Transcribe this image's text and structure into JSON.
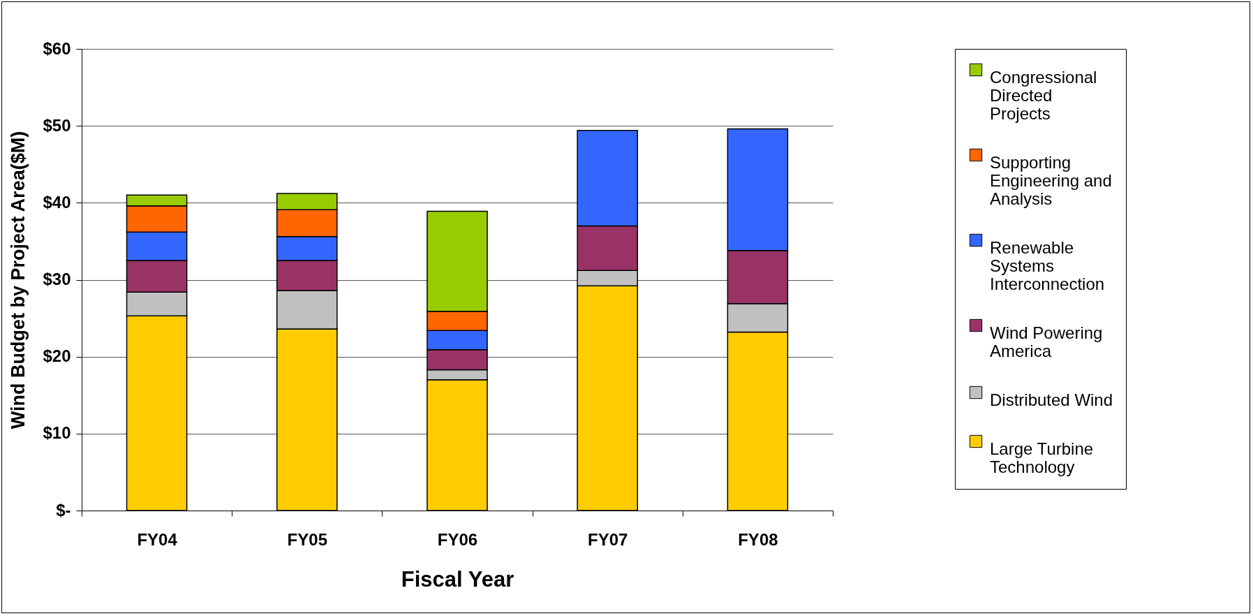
{
  "chart_data": {
    "type": "bar",
    "stacked": true,
    "xlabel": "Fiscal Year",
    "ylabel": "Wind Budget by Project Area($M)",
    "categories": [
      "FY04",
      "FY05",
      "FY06",
      "FY07",
      "FY08"
    ],
    "series": [
      {
        "name": "Large Turbine Technology",
        "color": "#ffcc00",
        "values": [
          25.3,
          23.6,
          17.0,
          29.2,
          23.2
        ]
      },
      {
        "name": "Distributed Wind",
        "color": "#c0c0c0",
        "values": [
          3.1,
          5.0,
          1.3,
          2.0,
          3.7
        ]
      },
      {
        "name": "Wind Powering America",
        "color": "#993366",
        "values": [
          4.1,
          3.9,
          2.6,
          5.8,
          6.9
        ]
      },
      {
        "name": "Renewable Systems Interconnection",
        "color": "#3366ff",
        "values": [
          3.7,
          3.1,
          2.5,
          12.4,
          15.8
        ]
      },
      {
        "name": "Supporting Engineering and Analysis",
        "color": "#ff6600",
        "values": [
          3.4,
          3.5,
          2.5,
          null,
          null
        ]
      },
      {
        "name": "Congressional Directed Projects",
        "color": "#99cc00",
        "values": [
          1.4,
          2.1,
          13.0,
          null,
          null
        ]
      }
    ],
    "ylim": [
      0,
      60
    ],
    "yticks": [
      {
        "value": 0,
        "label": "$-"
      },
      {
        "value": 10,
        "label": "$10"
      },
      {
        "value": 20,
        "label": "$20"
      },
      {
        "value": 30,
        "label": "$30"
      },
      {
        "value": 40,
        "label": "$40"
      },
      {
        "value": 50,
        "label": "$50"
      },
      {
        "value": 60,
        "label": "$60"
      }
    ],
    "grid": "y",
    "legend": "right"
  }
}
